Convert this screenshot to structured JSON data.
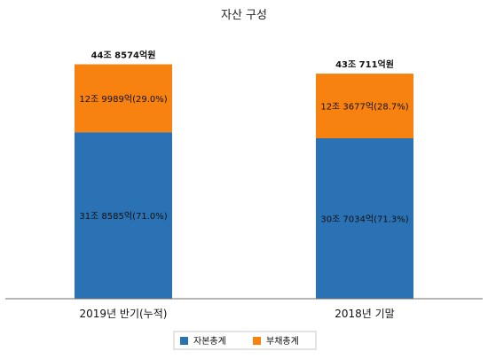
{
  "chart_data": {
    "type": "bar",
    "stacked": true,
    "title": "자산 구성",
    "categories": [
      "2019년 반기(누적)",
      "2018년 기말"
    ],
    "totals": [
      448574,
      430711
    ],
    "total_labels": [
      "44조 8574억원",
      "43조 711억원"
    ],
    "series": [
      {
        "name": "자본총계",
        "color": "#2b72b5",
        "values": [
          318585,
          307034
        ],
        "labels": [
          "31조 8585억(71.0%)",
          "30조 7034억(71.3%)"
        ]
      },
      {
        "name": "부채총계",
        "color": "#f7820f",
        "values": [
          129989,
          123677
        ],
        "labels": [
          "12조 9989억(29.0%)",
          "12조 3677억(28.7%)"
        ]
      }
    ],
    "ylim": [
      0,
      536000
    ],
    "grid": false,
    "legend_position": "bottom"
  }
}
